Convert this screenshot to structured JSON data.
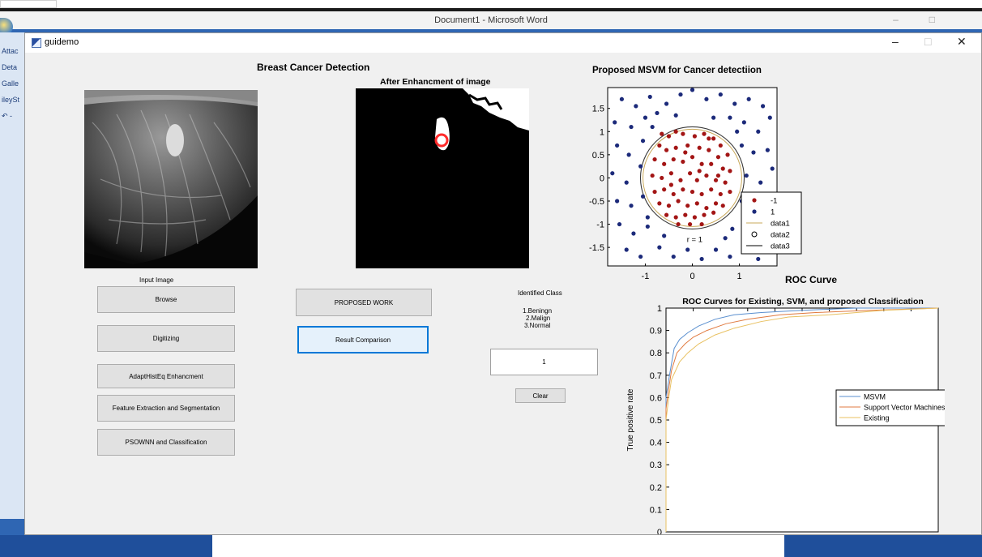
{
  "word": {
    "title": "Document1 - Microsoft Word",
    "left_pane_items": [
      "Attac",
      "Deta",
      "Galle",
      "ileySt",
      "↶ -"
    ],
    "controls": [
      "–",
      "□"
    ]
  },
  "window": {
    "title": "guidemo",
    "controls": {
      "minimize": "–",
      "maximize": "□",
      "close": "✕"
    }
  },
  "gui": {
    "heading": "Breast Cancer Detection",
    "enhanced_title": "After Enhancment of image",
    "input_label": "Input Image",
    "buttons": {
      "browse": "Browse",
      "digitizing": "Digitizing",
      "adapt": "AdaptHistEq Enhancment",
      "feature": "Feature Extraction and Segmentation",
      "psownn": "PSOWNN and Classification",
      "proposed": "PROPOSED WORK",
      "result": "Result Comparison",
      "clear": "Clear"
    },
    "identified_class_label": "Identified Class",
    "class_options": [
      "1.Beningn",
      "2.Malign",
      "3.Normal"
    ],
    "identified_value": "1",
    "roc_curve_label": "ROC Curve"
  },
  "colors": {
    "class_minus1": "#a31515",
    "class_plus1": "#1c2a7a",
    "boundary": "#3a3a3a",
    "data1": "#c8a85a",
    "msvm": "#5a8fcf",
    "svm": "#e07a40",
    "existing": "#e8c060",
    "enhance_marker": "#ff2a2a"
  },
  "chart_data": [
    {
      "type": "scatter",
      "title": "Proposed MSVM for Cancer detectiion",
      "xlim": [
        -1.8,
        1.8
      ],
      "ylim": [
        -1.9,
        1.95
      ],
      "xticks": [
        -1,
        0,
        1
      ],
      "yticks": [
        1.5,
        1,
        0.5,
        0,
        -0.5,
        -1,
        -1.5
      ],
      "annotation": "r = 1",
      "legend": [
        "-1",
        "1",
        "data1",
        "data2",
        "data3"
      ],
      "legend_position": "right",
      "series": [
        {
          "name": "-1",
          "points": [
            [
              -0.65,
              0.95
            ],
            [
              -0.5,
              0.9
            ],
            [
              -0.35,
              1.0
            ],
            [
              -0.2,
              0.95
            ],
            [
              0.05,
              0.9
            ],
            [
              0.25,
              0.95
            ],
            [
              0.45,
              0.85
            ],
            [
              0.6,
              0.7
            ],
            [
              -0.7,
              0.7
            ],
            [
              -0.55,
              0.6
            ],
            [
              -0.35,
              0.65
            ],
            [
              -0.1,
              0.7
            ],
            [
              0.15,
              0.65
            ],
            [
              0.35,
              0.6
            ],
            [
              0.55,
              0.45
            ],
            [
              0.75,
              0.5
            ],
            [
              -0.8,
              0.4
            ],
            [
              -0.6,
              0.3
            ],
            [
              -0.4,
              0.4
            ],
            [
              -0.2,
              0.35
            ],
            [
              0.0,
              0.45
            ],
            [
              0.2,
              0.3
            ],
            [
              0.4,
              0.3
            ],
            [
              0.65,
              0.2
            ],
            [
              0.8,
              0.15
            ],
            [
              -0.85,
              0.05
            ],
            [
              -0.65,
              0.0
            ],
            [
              -0.45,
              0.1
            ],
            [
              -0.25,
              -0.05
            ],
            [
              -0.05,
              0.1
            ],
            [
              0.1,
              -0.05
            ],
            [
              0.3,
              0.05
            ],
            [
              0.5,
              -0.05
            ],
            [
              0.7,
              -0.1
            ],
            [
              -0.8,
              -0.3
            ],
            [
              -0.6,
              -0.25
            ],
            [
              -0.4,
              -0.35
            ],
            [
              -0.2,
              -0.25
            ],
            [
              0.0,
              -0.3
            ],
            [
              0.2,
              -0.35
            ],
            [
              0.4,
              -0.25
            ],
            [
              0.6,
              -0.35
            ],
            [
              0.8,
              -0.3
            ],
            [
              -0.7,
              -0.55
            ],
            [
              -0.5,
              -0.6
            ],
            [
              -0.3,
              -0.5
            ],
            [
              -0.1,
              -0.6
            ],
            [
              0.1,
              -0.55
            ],
            [
              0.3,
              -0.65
            ],
            [
              0.5,
              -0.55
            ],
            [
              0.65,
              -0.6
            ],
            [
              -0.55,
              -0.8
            ],
            [
              -0.35,
              -0.85
            ],
            [
              -0.15,
              -0.8
            ],
            [
              0.05,
              -0.85
            ],
            [
              0.25,
              -0.8
            ],
            [
              0.45,
              -0.75
            ],
            [
              -0.3,
              -1.0
            ],
            [
              -0.05,
              -1.0
            ],
            [
              0.2,
              -1.0
            ],
            [
              0.35,
              0.85
            ],
            [
              -0.45,
              -0.15
            ],
            [
              0.15,
              0.15
            ],
            [
              -0.15,
              0.55
            ],
            [
              0.55,
              0.05
            ]
          ]
        },
        {
          "name": "1",
          "points": [
            [
              -1.5,
              1.7
            ],
            [
              -1.2,
              1.55
            ],
            [
              -0.9,
              1.75
            ],
            [
              -0.55,
              1.6
            ],
            [
              -0.25,
              1.8
            ],
            [
              0.0,
              1.9
            ],
            [
              0.3,
              1.7
            ],
            [
              0.6,
              1.8
            ],
            [
              0.9,
              1.6
            ],
            [
              1.2,
              1.7
            ],
            [
              1.5,
              1.55
            ],
            [
              -1.65,
              1.2
            ],
            [
              -1.3,
              1.1
            ],
            [
              -1.0,
              1.3
            ],
            [
              -0.75,
              1.4
            ],
            [
              0.8,
              1.3
            ],
            [
              1.1,
              1.2
            ],
            [
              1.4,
              1.0
            ],
            [
              1.65,
              1.3
            ],
            [
              -1.6,
              0.7
            ],
            [
              -1.35,
              0.5
            ],
            [
              -1.05,
              0.8
            ],
            [
              1.05,
              0.7
            ],
            [
              1.3,
              0.55
            ],
            [
              1.6,
              0.6
            ],
            [
              -1.7,
              0.1
            ],
            [
              -1.4,
              -0.1
            ],
            [
              -1.1,
              0.25
            ],
            [
              1.15,
              0.05
            ],
            [
              1.45,
              -0.1
            ],
            [
              1.7,
              0.2
            ],
            [
              -1.6,
              -0.5
            ],
            [
              -1.3,
              -0.6
            ],
            [
              -1.05,
              -0.4
            ],
            [
              1.05,
              -0.5
            ],
            [
              1.35,
              -0.65
            ],
            [
              1.65,
              -0.45
            ],
            [
              -1.55,
              -1.0
            ],
            [
              -1.25,
              -1.2
            ],
            [
              -0.95,
              -1.05
            ],
            [
              0.85,
              -1.1
            ],
            [
              1.15,
              -1.25
            ],
            [
              1.5,
              -1.1
            ],
            [
              -1.4,
              -1.55
            ],
            [
              -1.1,
              -1.7
            ],
            [
              -0.7,
              -1.5
            ],
            [
              -0.4,
              -1.7
            ],
            [
              -0.1,
              -1.55
            ],
            [
              0.2,
              -1.75
            ],
            [
              0.5,
              -1.55
            ],
            [
              0.8,
              -1.7
            ],
            [
              1.1,
              -1.6
            ],
            [
              1.4,
              -1.75
            ],
            [
              -0.85,
              1.1
            ],
            [
              0.95,
              1.0
            ],
            [
              -0.95,
              -0.85
            ],
            [
              0.7,
              -1.3
            ],
            [
              -0.6,
              -1.25
            ],
            [
              0.45,
              1.3
            ],
            [
              -0.35,
              1.35
            ]
          ]
        }
      ],
      "boundary_radius": 1.05
    },
    {
      "type": "line",
      "title": "ROC Curves for Existing, SVM, and proposed Classification",
      "xlabel": "",
      "ylabel": "True positive rate",
      "xlim": [
        0,
        1
      ],
      "ylim": [
        0,
        1
      ],
      "yticks": [
        0,
        0.1,
        0.2,
        0.3,
        0.4,
        0.5,
        0.6,
        0.7,
        0.8,
        0.9,
        1
      ],
      "legend_position": "right",
      "series": [
        {
          "name": "MSVM",
          "x": [
            0,
            0.0,
            0.01,
            0.02,
            0.03,
            0.05,
            0.08,
            0.12,
            0.18,
            0.25,
            0.35,
            0.5,
            0.7,
            1.0
          ],
          "y": [
            0,
            0.6,
            0.68,
            0.75,
            0.82,
            0.86,
            0.89,
            0.92,
            0.95,
            0.97,
            0.98,
            0.99,
            1.0,
            1.0
          ]
        },
        {
          "name": "Support Vector Machines",
          "x": [
            0,
            0.0,
            0.01,
            0.02,
            0.04,
            0.07,
            0.1,
            0.15,
            0.22,
            0.3,
            0.42,
            0.55,
            0.75,
            1.0
          ],
          "y": [
            0,
            0.55,
            0.64,
            0.72,
            0.8,
            0.84,
            0.87,
            0.9,
            0.93,
            0.95,
            0.97,
            0.98,
            0.99,
            1.0
          ]
        },
        {
          "name": "Existing",
          "x": [
            0,
            0.0,
            0.01,
            0.02,
            0.05,
            0.08,
            0.12,
            0.18,
            0.25,
            0.35,
            0.45,
            0.6,
            0.8,
            1.0
          ],
          "y": [
            0,
            0.5,
            0.6,
            0.68,
            0.76,
            0.8,
            0.84,
            0.88,
            0.91,
            0.94,
            0.96,
            0.97,
            0.99,
            1.0
          ]
        }
      ]
    }
  ]
}
